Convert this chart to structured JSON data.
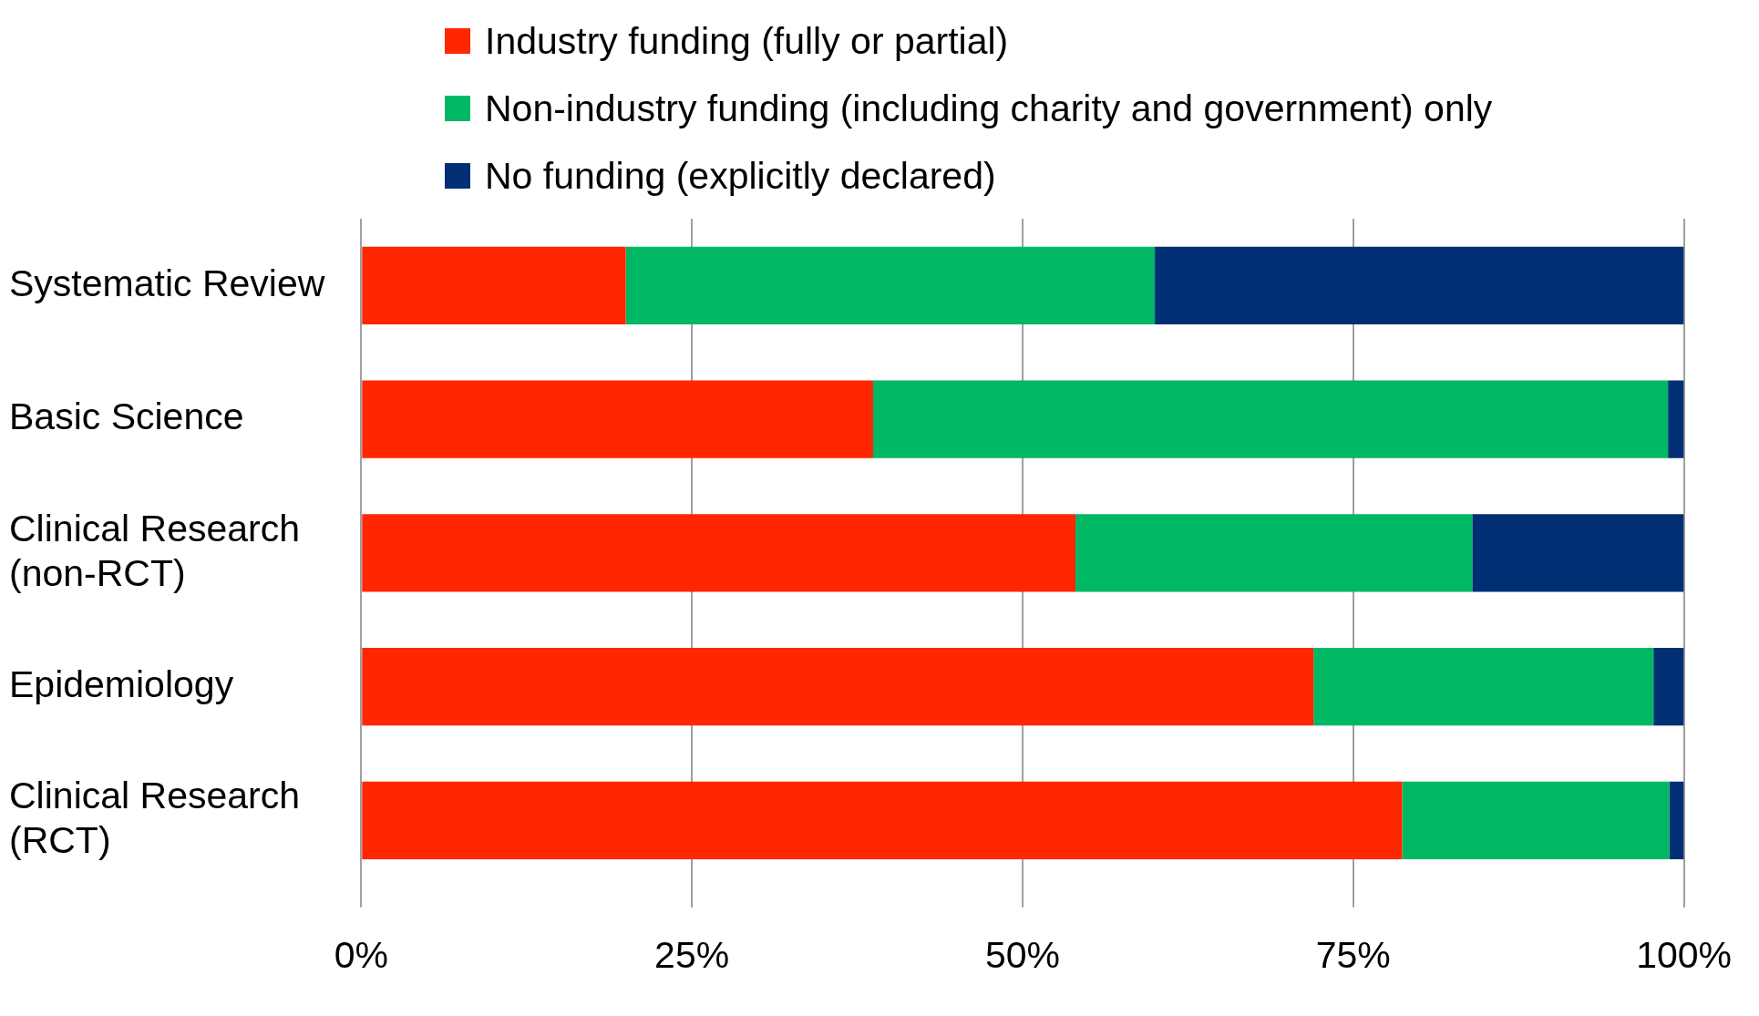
{
  "chart_data": {
    "type": "bar",
    "orientation": "horizontal",
    "stacked": true,
    "categories": [
      "Systematic Review",
      "Basic Science",
      "Clinical Research (non-RCT)",
      "Epidemiology",
      "Clinical Research (RCT)"
    ],
    "series": [
      {
        "name": "Industry funding (fully or partial)",
        "color": "#ff2600",
        "values": [
          20,
          38.7,
          54,
          72,
          78.7
        ]
      },
      {
        "name": "Non-industry funding (including charity and government) only",
        "color": "#00b764",
        "values": [
          40,
          60.1,
          30,
          25.7,
          20.2
        ]
      },
      {
        "name": "No funding (explicitly declared)",
        "color": "#002f73",
        "values": [
          40,
          1.2,
          16,
          2.3,
          1.1
        ]
      }
    ],
    "xlim": [
      0,
      100
    ],
    "xticks": [
      {
        "value": 0,
        "label": "0%"
      },
      {
        "value": 25,
        "label": "25%"
      },
      {
        "value": 50,
        "label": "50%"
      },
      {
        "value": 75,
        "label": "75%"
      },
      {
        "value": 100,
        "label": "100%"
      }
    ],
    "grid": "x",
    "legend": "top"
  }
}
